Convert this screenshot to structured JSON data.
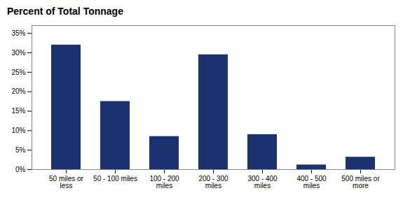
{
  "chart_data": {
    "type": "bar",
    "title": "Percent of Total Tonnage",
    "categories": [
      "50 miles or\nless",
      "50 - 100 miles",
      "100 - 200\nmiles",
      "200 - 300\nmiles",
      "300 - 400\nmiles",
      "400 - 500\nmiles",
      "500 miles or\nmore"
    ],
    "values": [
      32,
      17.5,
      8.5,
      29.5,
      9,
      1.2,
      3.2
    ],
    "color": "#1a3270",
    "ylim": [
      0,
      37
    ],
    "yticks": [
      {
        "value": 0,
        "label": "0%"
      },
      {
        "value": 5,
        "label": "5%"
      },
      {
        "value": 10,
        "label": "10%"
      },
      {
        "value": 15,
        "label": "15%"
      },
      {
        "value": 20,
        "label": "20%"
      },
      {
        "value": 25,
        "label": "25%"
      },
      {
        "value": 30,
        "label": "30%"
      },
      {
        "value": 35,
        "label": "35%"
      }
    ],
    "grid": false
  }
}
